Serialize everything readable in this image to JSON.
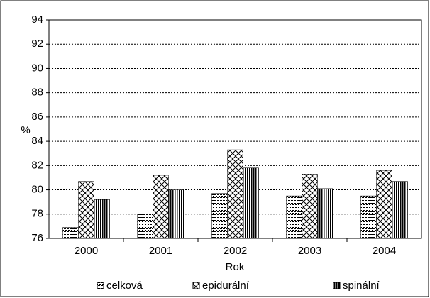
{
  "chart_data": {
    "type": "bar",
    "x_label": "Rok",
    "y_label": "%",
    "categories": [
      "2000",
      "2001",
      "2002",
      "2003",
      "2004"
    ],
    "series": [
      {
        "name": "celková",
        "color": "#000000",
        "values": [
          76.9,
          78.0,
          79.7,
          79.5,
          79.5
        ]
      },
      {
        "name": "epidurální",
        "color": "#000000",
        "values": [
          80.7,
          81.2,
          83.3,
          81.3,
          81.6
        ]
      },
      {
        "name": "spinální",
        "color": "#000000",
        "values": [
          79.2,
          80.0,
          81.8,
          80.1,
          80.7
        ]
      }
    ],
    "ylim": [
      76,
      94
    ],
    "yticks": [
      76,
      78,
      80,
      82,
      84,
      86,
      88,
      90,
      92,
      94
    ],
    "grid": true,
    "legend": "bottom"
  }
}
